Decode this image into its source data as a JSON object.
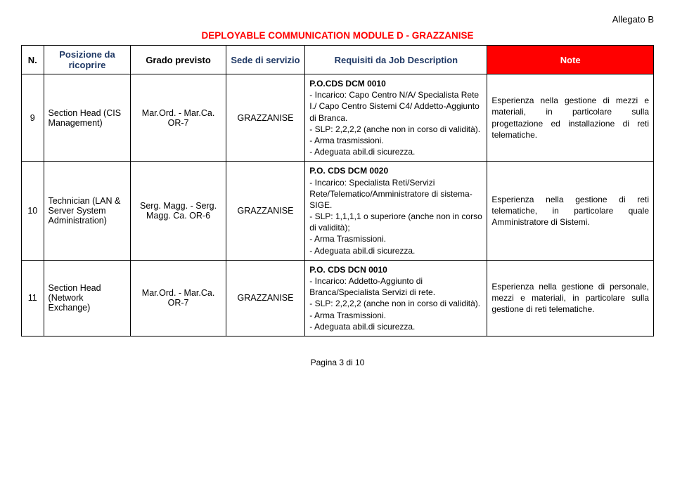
{
  "header": {
    "allegato": "Allegato B",
    "title": "DEPLOYABLE COMMUNICATION MODULE D - GRAZZANISE"
  },
  "columns": {
    "n": "N.",
    "posizione": "Posizione da ricoprire",
    "grado": "Grado previsto",
    "sede": "Sede di servizio",
    "requisiti": "Requisiti da Job Description",
    "note": "Note"
  },
  "rows": [
    {
      "n": "9",
      "posizione": "Section Head (CIS Management)",
      "grado": "Mar.Ord. - Mar.Ca. OR-7",
      "sede": "GRAZZANISE",
      "requisiti_bold": "P.O.CDS DCM 0010",
      "requisiti_body": "- Incarico: Capo Centro N/A/ Specialista Rete I./ Capo Centro Sistemi C4/ Addetto-Aggiunto di Branca.\n- SLP: 2,2,2,2 (anche non in corso di validità).\n- Arma trasmissioni.\n- Adeguata abil.di sicurezza.",
      "note": "Esperienza nella gestione di mezzi e materiali, in particolare sulla progettazione ed installazione di reti telematiche."
    },
    {
      "n": "10",
      "posizione": "Technician (LAN & Server System Administration)",
      "grado": "Serg. Magg. - Serg. Magg. Ca. OR-6",
      "sede": "GRAZZANISE",
      "requisiti_bold": "P.O. CDS DCM 0020",
      "requisiti_body": "- Incarico: Specialista Reti/Servizi Rete/Telematico/Amministratore di sistema-SIGE.\n- SLP: 1,1,1,1 o superiore (anche non in corso di validità);\n- Arma Trasmissioni.\n- Adeguata abil.di sicurezza.",
      "note": "Esperienza nella gestione di reti telematiche, in particolare quale Amministratore di Sistemi."
    },
    {
      "n": "11",
      "posizione": "Section Head (Network Exchange)",
      "grado": "Mar.Ord. - Mar.Ca. OR-7",
      "sede": "GRAZZANISE",
      "requisiti_bold": "P.O. CDS DCN 0010",
      "requisiti_body": "- Incarico: Addetto-Aggiunto di Branca/Specialista Servizi di rete.\n- SLP: 2,2,2,2 (anche non in corso di validità).\n- Arma Trasmissioni.\n- Adeguata abil.di sicurezza.",
      "note": "Esperienza nella gestione di personale, mezzi e materiali, in particolare sulla gestione di reti telematiche."
    }
  ],
  "footer": {
    "page": "Pagina 3 di 10"
  }
}
